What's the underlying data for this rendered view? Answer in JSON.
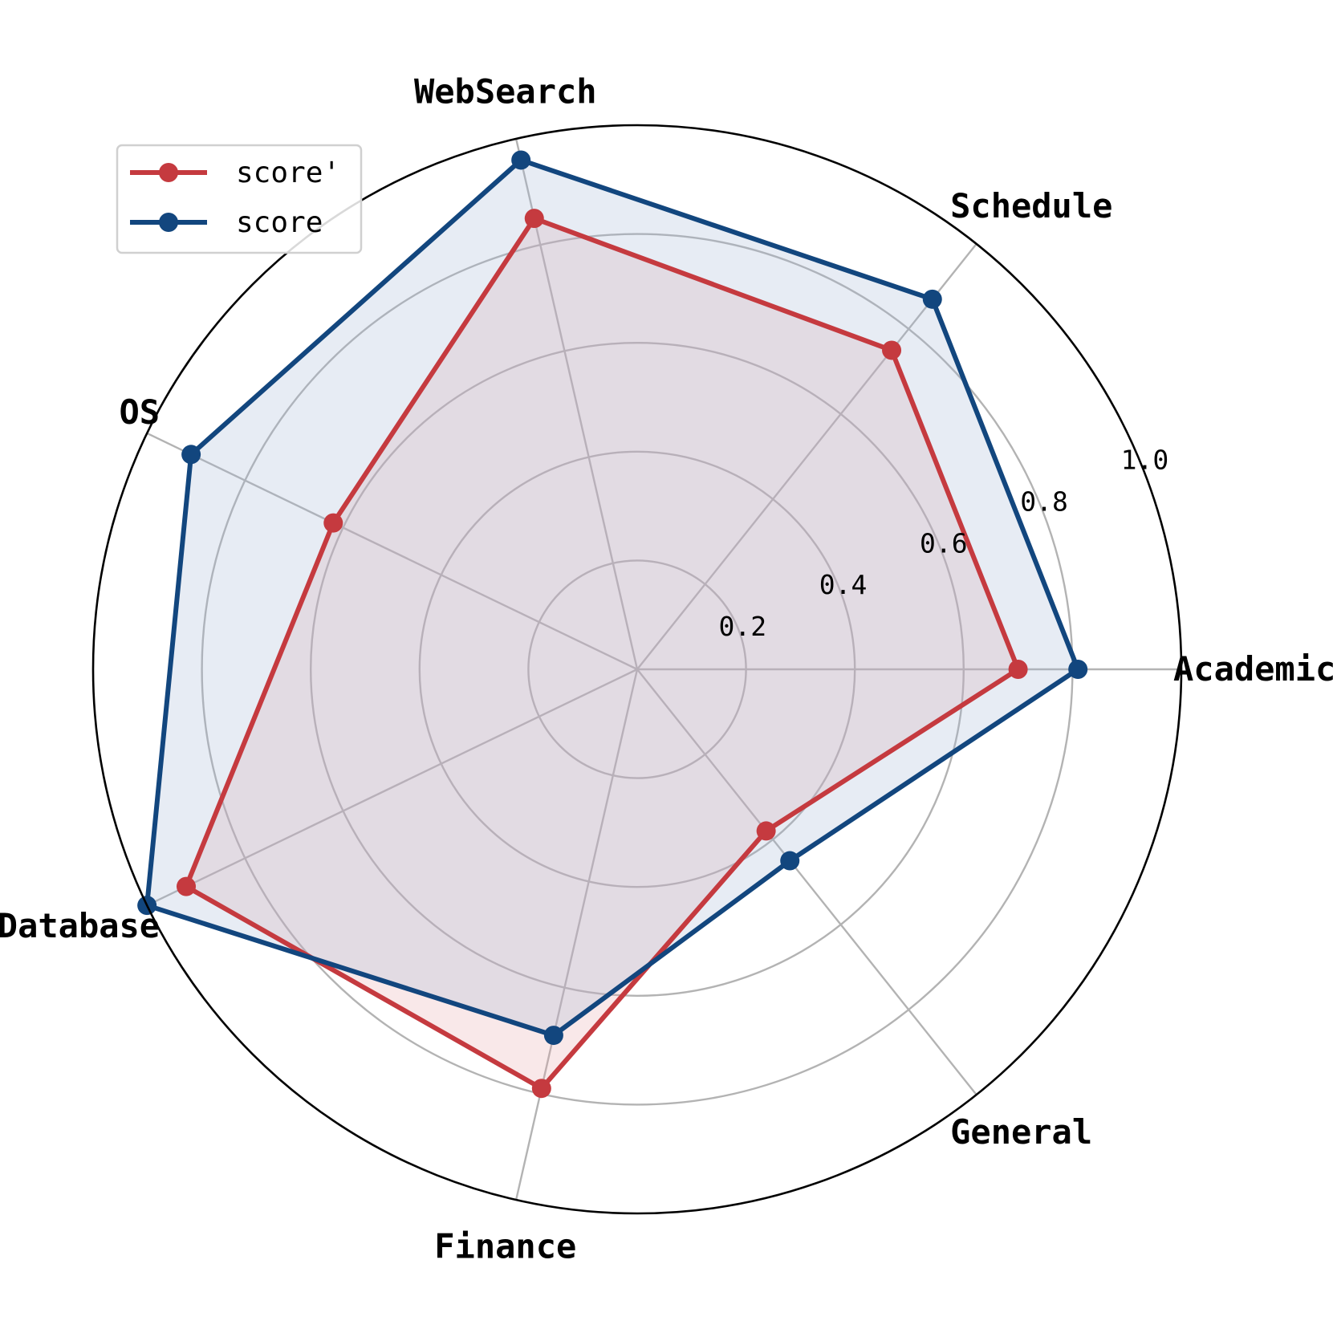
{
  "chart_data": {
    "type": "radar",
    "categories": [
      "Academic",
      "Schedule",
      "WebSearch",
      "OS",
      "Database",
      "Finance",
      "General"
    ],
    "series": [
      {
        "name": "score'",
        "color": "#c53a3f",
        "fill": "#e8a3a6",
        "values": [
          0.7,
          0.75,
          0.85,
          0.62,
          0.92,
          0.79,
          0.38
        ]
      },
      {
        "name": "score",
        "color": "#12467e",
        "fill": "#9fb5d3",
        "values": [
          0.81,
          0.87,
          0.96,
          0.91,
          1.0,
          0.69,
          0.45
        ]
      }
    ],
    "rlim": [
      0,
      1.0
    ],
    "rticks": [
      0.2,
      0.4,
      0.6,
      0.8,
      1.0
    ],
    "rtick_labels": [
      "0.2",
      "0.4",
      "0.6",
      "0.8",
      "1.0"
    ],
    "grid": true,
    "legend_position": "top-left"
  }
}
